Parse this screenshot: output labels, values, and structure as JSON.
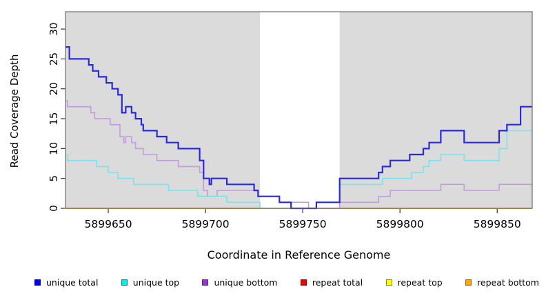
{
  "chart_data": {
    "type": "line",
    "subtype": "step",
    "title": "",
    "xlabel": "Coordinate in Reference Genome",
    "ylabel": "Read Coverage Depth",
    "xlim": [
      5899628,
      5899868
    ],
    "ylim": [
      0,
      32.9
    ],
    "x_ticks": [
      5899650,
      5899700,
      5899750,
      5899800,
      5899850
    ],
    "y_ticks": [
      0,
      5,
      10,
      15,
      20,
      25,
      30
    ],
    "grid": false,
    "panel_background": "#DBDBDB",
    "masked_region": {
      "from": 5899728,
      "to": 5899769,
      "color": "#FFFFFF"
    },
    "border_color": "#6B6B6B",
    "tick_color": "#333333",
    "series": [
      {
        "name": "repeat total",
        "color": "#EE0000",
        "width": 1.4,
        "points": [
          [
            5899628,
            0
          ],
          [
            5899868,
            0
          ]
        ]
      },
      {
        "name": "repeat top",
        "color": "#FFFF00",
        "width": 1.4,
        "points": [
          [
            5899628,
            0
          ],
          [
            5899868,
            0
          ]
        ]
      },
      {
        "name": "repeat bottom",
        "color": "#FFA318",
        "width": 1.8,
        "points": [
          [
            5899628,
            0
          ],
          [
            5899868,
            0
          ]
        ]
      },
      {
        "name": "unique bottom",
        "color": "#C39ADF",
        "width": 1.6,
        "points": [
          [
            5899628,
            18
          ],
          [
            5899629,
            17
          ],
          [
            5899641,
            16
          ],
          [
            5899643,
            15
          ],
          [
            5899651,
            14
          ],
          [
            5899656,
            12
          ],
          [
            5899658,
            11
          ],
          [
            5899659,
            12
          ],
          [
            5899662,
            11
          ],
          [
            5899664,
            10
          ],
          [
            5899668,
            9
          ],
          [
            5899675,
            8
          ],
          [
            5899686,
            7
          ],
          [
            5899697,
            6
          ],
          [
            5899699,
            3
          ],
          [
            5899701,
            2
          ],
          [
            5899706,
            3
          ],
          [
            5899727,
            2
          ],
          [
            5899738,
            1
          ],
          [
            5899753,
            0
          ],
          [
            5899769,
            1
          ],
          [
            5899789,
            2
          ],
          [
            5899795,
            3
          ],
          [
            5899821,
            4
          ],
          [
            5899833,
            3
          ],
          [
            5899851,
            4
          ],
          [
            5899868,
            4
          ]
        ]
      },
      {
        "name": "unique top",
        "color": "#72E6F2",
        "width": 1.6,
        "points": [
          [
            5899628,
            9
          ],
          [
            5899629,
            8
          ],
          [
            5899644,
            7
          ],
          [
            5899650,
            6
          ],
          [
            5899655,
            5
          ],
          [
            5899663,
            4
          ],
          [
            5899681,
            3
          ],
          [
            5899696,
            2
          ],
          [
            5899711,
            1
          ],
          [
            5899728,
            0
          ],
          [
            5899757,
            1
          ],
          [
            5899769,
            4
          ],
          [
            5899791,
            5
          ],
          [
            5899806,
            6
          ],
          [
            5899812,
            7
          ],
          [
            5899815,
            8
          ],
          [
            5899821,
            9
          ],
          [
            5899833,
            8
          ],
          [
            5899851,
            10
          ],
          [
            5899855,
            13
          ],
          [
            5899868,
            13
          ]
        ]
      },
      {
        "name": "unique total",
        "color": "#2A2AD8",
        "width": 2.2,
        "points": [
          [
            5899628,
            27
          ],
          [
            5899630,
            25
          ],
          [
            5899640,
            24
          ],
          [
            5899642,
            23
          ],
          [
            5899645,
            22
          ],
          [
            5899649,
            21
          ],
          [
            5899652,
            20
          ],
          [
            5899655,
            19
          ],
          [
            5899657,
            16
          ],
          [
            5899659,
            17
          ],
          [
            5899662,
            16
          ],
          [
            5899664,
            15
          ],
          [
            5899667,
            14
          ],
          [
            5899668,
            13
          ],
          [
            5899675,
            12
          ],
          [
            5899680,
            11
          ],
          [
            5899686,
            10
          ],
          [
            5899697,
            8
          ],
          [
            5899699,
            5
          ],
          [
            5899702,
            4
          ],
          [
            5899703,
            5
          ],
          [
            5899711,
            4
          ],
          [
            5899725,
            3
          ],
          [
            5899727,
            2
          ],
          [
            5899738,
            1
          ],
          [
            5899744,
            0
          ],
          [
            5899757,
            1
          ],
          [
            5899769,
            5
          ],
          [
            5899789,
            6
          ],
          [
            5899791,
            7
          ],
          [
            5899795,
            8
          ],
          [
            5899805,
            9
          ],
          [
            5899812,
            10
          ],
          [
            5899815,
            11
          ],
          [
            5899821,
            13
          ],
          [
            5899833,
            11
          ],
          [
            5899851,
            13
          ],
          [
            5899855,
            14
          ],
          [
            5899862,
            17
          ],
          [
            5899868,
            17
          ]
        ]
      }
    ]
  },
  "legend": {
    "items": [
      {
        "label": "unique total",
        "color": "#0000EE",
        "border": "#0000A8"
      },
      {
        "label": "unique top",
        "color": "#00EEEE",
        "border": "#008B8B"
      },
      {
        "label": "unique bottom",
        "color": "#9A32CD",
        "border": "#6A1B8A"
      },
      {
        "label": "repeat total",
        "color": "#EE0000",
        "border": "#8B0000"
      },
      {
        "label": "repeat top",
        "color": "#FFFF00",
        "border": "#8B8B00"
      },
      {
        "label": "repeat bottom",
        "color": "#FFA500",
        "border": "#A86400"
      }
    ]
  }
}
